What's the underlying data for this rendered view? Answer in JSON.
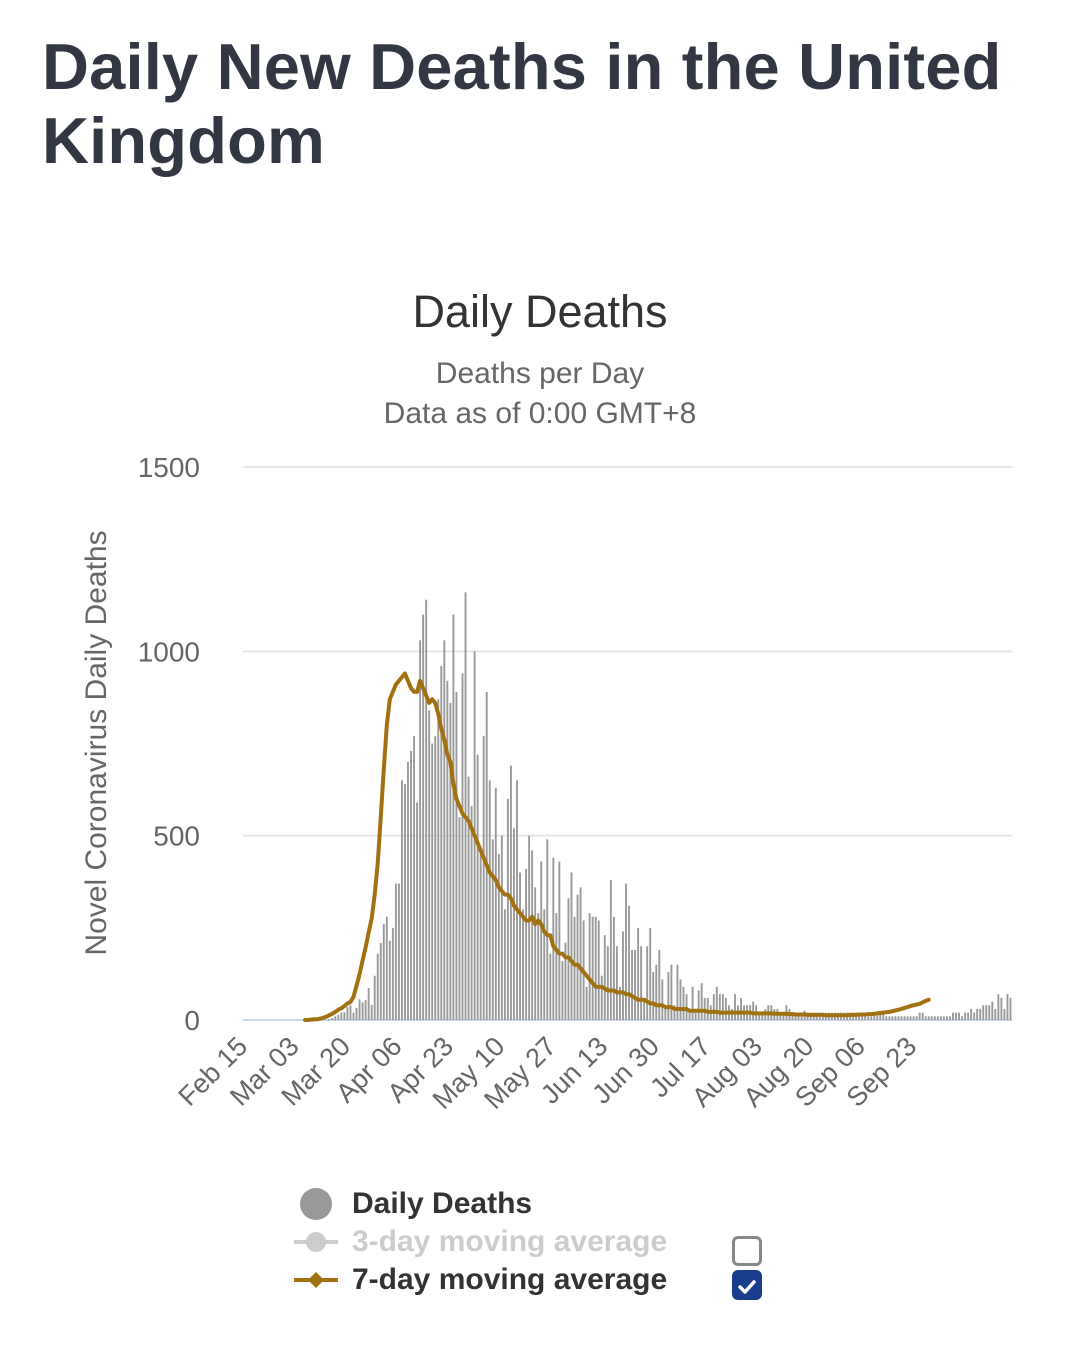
{
  "page": {
    "title": "Daily New Deaths in the United Kingdom"
  },
  "chart": {
    "title": "Daily Deaths",
    "subtitle_line1": "Deaths per Day",
    "subtitle_line2": "Data as of 0:00 GMT+8",
    "ylabel": "Novel Coronavirus Daily Deaths"
  },
  "legend": [
    {
      "label": "Daily Deaths",
      "symbol": "circle",
      "color": "#999999",
      "enabled": true,
      "checkbox": null
    },
    {
      "label": "3-day moving average",
      "symbol": "circle-line",
      "color": "#cccccc",
      "enabled": false,
      "checkbox": "unchecked"
    },
    {
      "label": "7-day moving average",
      "symbol": "diamond-line",
      "color": "#a3700f",
      "enabled": true,
      "checkbox": "checked"
    }
  ],
  "colors": {
    "bar": "#999999",
    "line": "#a3700f",
    "grid": "#e6e6e6",
    "axis": "#ccd6eb",
    "checkbox": "#1a3c8c"
  },
  "chart_data": {
    "type": "bar",
    "start_date": "Feb 15",
    "x_tick_labels": [
      "Feb 15",
      "Mar 03",
      "Mar 20",
      "Apr 06",
      "Apr 23",
      "May 10",
      "May 27",
      "Jun 13",
      "Jun 30",
      "Jul 17",
      "Aug 03",
      "Aug 20",
      "Sep 06",
      "Sep 23"
    ],
    "x_tick_interval_days": 17,
    "y_tick_labels": [
      "0",
      "500",
      "1000",
      "1500"
    ],
    "ylim": [
      0,
      1500
    ],
    "grid": true,
    "legend_position": "bottom-center",
    "series": [
      {
        "name": "Daily Deaths",
        "type": "bar",
        "values": [
          0,
          0,
          0,
          0,
          0,
          0,
          0,
          0,
          0,
          0,
          0,
          0,
          0,
          0,
          0,
          0,
          0,
          0,
          0,
          0,
          0,
          1,
          0,
          1,
          0,
          1,
          2,
          1,
          3,
          5,
          10,
          14,
          20,
          21,
          35,
          40,
          20,
          33,
          56,
          48,
          54,
          87,
          41,
          120,
          180,
          209,
          260,
          280,
          215,
          250,
          370,
          370,
          650,
          640,
          700,
          730,
          770,
          590,
          1030,
          1100,
          1140,
          840,
          750,
          770,
          870,
          960,
          1030,
          920,
          860,
          1100,
          890,
          550,
          940,
          1160,
          660,
          580,
          1000,
          720,
          470,
          770,
          890,
          650,
          490,
          630,
          450,
          500,
          300,
          600,
          690,
          520,
          650,
          400,
          300,
          410,
          500,
          460,
          360,
          290,
          430,
          300,
          490,
          180,
          440,
          290,
          430,
          160,
          210,
          330,
          400,
          280,
          340,
          360,
          270,
          90,
          290,
          280,
          280,
          270,
          120,
          230,
          200,
          380,
          280,
          200,
          90,
          240,
          370,
          310,
          190,
          190,
          250,
          200,
          60,
          200,
          250,
          130,
          150,
          190,
          110,
          40,
          130,
          150,
          40,
          150,
          110,
          90,
          70,
          30,
          90,
          30,
          80,
          100,
          60,
          60,
          40,
          70,
          90,
          70,
          70,
          60,
          40,
          30,
          70,
          40,
          60,
          40,
          40,
          40,
          50,
          40,
          20,
          20,
          30,
          40,
          40,
          30,
          30,
          20,
          20,
          40,
          30,
          20,
          20,
          20,
          20,
          25,
          20,
          20,
          20,
          20,
          20,
          20,
          20,
          20,
          20,
          20,
          20,
          20,
          20,
          20,
          20,
          20,
          20,
          20,
          20,
          20,
          10,
          10,
          20,
          20,
          20,
          20,
          10,
          10,
          10,
          10,
          10,
          10,
          10,
          10,
          10,
          10,
          10,
          20,
          20,
          10,
          10,
          10,
          10,
          10,
          10,
          10,
          10,
          10,
          20,
          20,
          20,
          10,
          20,
          20,
          30,
          20,
          30,
          30,
          40,
          40,
          40,
          50,
          30,
          70,
          60,
          30,
          70,
          60
        ]
      },
      {
        "name": "7-day moving average",
        "type": "line",
        "start_index": 20,
        "values": [
          0,
          0,
          1,
          2,
          2,
          4,
          6,
          9,
          13,
          17,
          22,
          28,
          32,
          38,
          45,
          49,
          63,
          93,
          124,
          162,
          197,
          237,
          275,
          340,
          425,
          550,
          680,
          800,
          870,
          890,
          910,
          920,
          930,
          940,
          920,
          900,
          890,
          890,
          920,
          900,
          880,
          860,
          870,
          860,
          830,
          790,
          760,
          720,
          700,
          640,
          600,
          580,
          560,
          550,
          540,
          520,
          500,
          480,
          460,
          440,
          420,
          400,
          390,
          380,
          360,
          350,
          340,
          340,
          330,
          310,
          300,
          290,
          280,
          270,
          270,
          280,
          260,
          270,
          260,
          240,
          230,
          230,
          200,
          190,
          180,
          180,
          170,
          170,
          160,
          150,
          150,
          140,
          130,
          120,
          110,
          100,
          90,
          90,
          90,
          85,
          80,
          80,
          80,
          75,
          75,
          75,
          70,
          70,
          65,
          60,
          55,
          55,
          55,
          50,
          45,
          45,
          40,
          40,
          40,
          35,
          35,
          35,
          30,
          30,
          30,
          30,
          30,
          25,
          25,
          25,
          25,
          25,
          25,
          22,
          22,
          22,
          22,
          20,
          20,
          20,
          20,
          20,
          20,
          20,
          20,
          20,
          20,
          20,
          18,
          18,
          18,
          18,
          18,
          18,
          18,
          17,
          17,
          17,
          17,
          17,
          16,
          16,
          15,
          15,
          15,
          15,
          14,
          14,
          14,
          14,
          14,
          14,
          13,
          13,
          13,
          13,
          13,
          13,
          13,
          13,
          14,
          14,
          14,
          15,
          15,
          15,
          16,
          16,
          17,
          18,
          19,
          20,
          21,
          22,
          24,
          26,
          28,
          30,
          33,
          35,
          38,
          40,
          42,
          44,
          48,
          52,
          55
        ]
      }
    ]
  }
}
